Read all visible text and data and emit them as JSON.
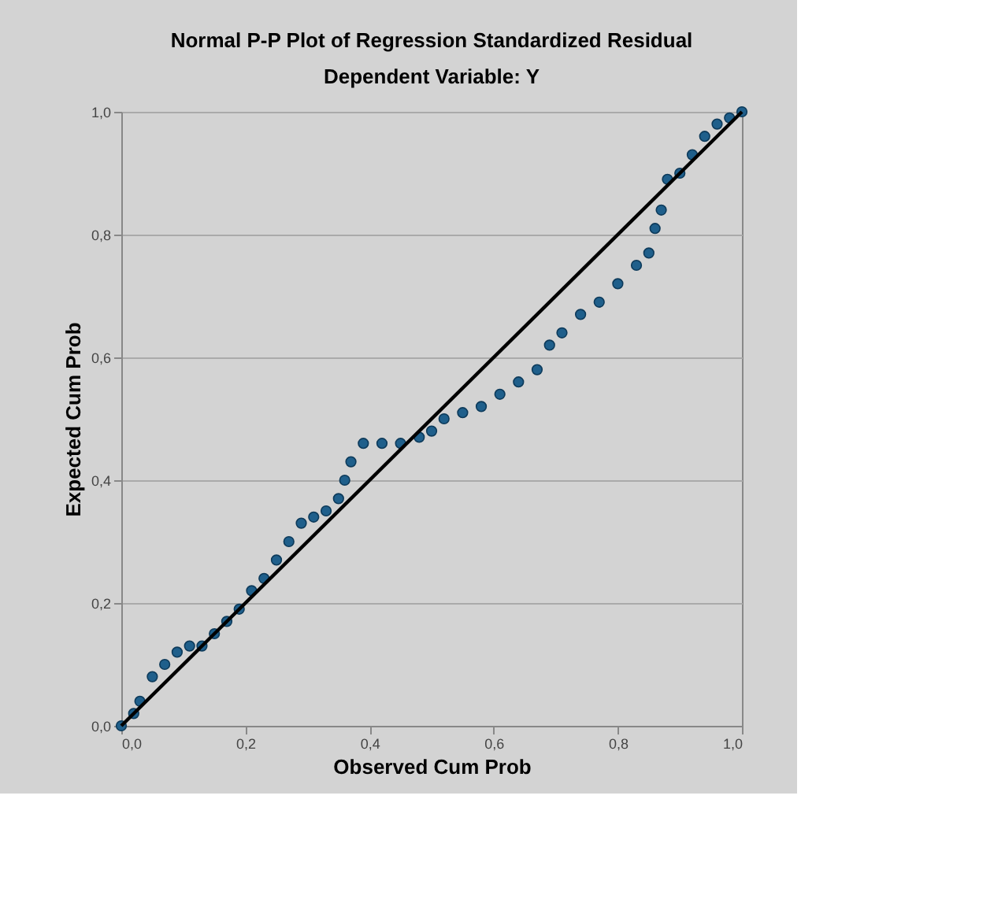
{
  "chart_data": {
    "type": "scatter",
    "title": "Normal P-P Plot of Regression Standardized Residual",
    "subtitle": "Dependent Variable: Y",
    "xlabel": "Observed Cum Prob",
    "ylabel": "Expected Cum Prob",
    "xlim": [
      0,
      1
    ],
    "ylim": [
      0,
      1
    ],
    "xticks": [
      {
        "value": 0,
        "label": "0,0"
      },
      {
        "value": 0.2,
        "label": "0,2"
      },
      {
        "value": 0.4,
        "label": "0,4"
      },
      {
        "value": 0.6,
        "label": "0,6"
      },
      {
        "value": 0.8,
        "label": "0,8"
      },
      {
        "value": 1,
        "label": "1,0"
      }
    ],
    "yticks": [
      {
        "value": 0,
        "label": "0,0"
      },
      {
        "value": 0.2,
        "label": "0,2"
      },
      {
        "value": 0.4,
        "label": "0,4"
      },
      {
        "value": 0.6,
        "label": "0,6"
      },
      {
        "value": 0.8,
        "label": "0,8"
      },
      {
        "value": 1,
        "label": "1,0"
      }
    ],
    "grid": "y",
    "series": [
      {
        "marker": "circle",
        "color": "#1f5f8b",
        "x": [
          0.0,
          0.02,
          0.03,
          0.05,
          0.07,
          0.09,
          0.11,
          0.13,
          0.15,
          0.17,
          0.19,
          0.21,
          0.23,
          0.25,
          0.27,
          0.29,
          0.31,
          0.33,
          0.35,
          0.36,
          0.37,
          0.39,
          0.42,
          0.45,
          0.48,
          0.5,
          0.52,
          0.55,
          0.58,
          0.61,
          0.64,
          0.67,
          0.69,
          0.71,
          0.74,
          0.77,
          0.8,
          0.83,
          0.85,
          0.86,
          0.87,
          0.88,
          0.9,
          0.92,
          0.94,
          0.96,
          0.98,
          1.0
        ],
        "values": [
          0.0,
          0.02,
          0.04,
          0.08,
          0.1,
          0.12,
          0.13,
          0.13,
          0.15,
          0.17,
          0.19,
          0.22,
          0.24,
          0.27,
          0.3,
          0.33,
          0.34,
          0.35,
          0.37,
          0.4,
          0.43,
          0.46,
          0.46,
          0.46,
          0.47,
          0.48,
          0.5,
          0.51,
          0.52,
          0.54,
          0.56,
          0.58,
          0.62,
          0.64,
          0.67,
          0.69,
          0.72,
          0.75,
          0.77,
          0.81,
          0.84,
          0.89,
          0.9,
          0.93,
          0.96,
          0.98,
          0.99,
          1.0
        ]
      },
      {
        "type": "line",
        "marker": "none",
        "color": "#000000",
        "x": [
          0,
          1
        ],
        "values": [
          0,
          1
        ],
        "line_style": "solid"
      }
    ]
  }
}
